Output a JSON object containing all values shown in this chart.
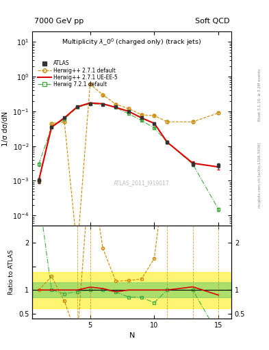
{
  "title_main": "Multiplicity $\\lambda\\_0^0$ (charged only) (track jets)",
  "top_left_label": "7000 GeV pp",
  "top_right_label": "Soft QCD",
  "right_label_top": "Rivet 3.1.10, ≥ 3.2M events",
  "right_label_bottom": "mcplots.cern.ch [arXiv:1306.3436]",
  "watermark": "ATLAS_2011_I919017",
  "ylabel_main": "1/σ dσ/dN",
  "ylabel_ratio": "Ratio to ATLAS",
  "xlabel": "N",
  "xlim": [
    0.5,
    16
  ],
  "ylim_main": [
    5e-05,
    20
  ],
  "ylim_ratio": [
    0.4,
    2.35
  ],
  "atlas_x": [
    1,
    2,
    3,
    4,
    5,
    6,
    7,
    8,
    9,
    10,
    11,
    13,
    15
  ],
  "atlas_y": [
    0.001,
    0.035,
    0.065,
    0.135,
    0.165,
    0.16,
    0.135,
    0.1,
    0.065,
    0.045,
    0.013,
    0.003,
    0.0028
  ],
  "atlas_yerr": [
    0.00015,
    0.002,
    0.003,
    0.006,
    0.007,
    0.007,
    0.006,
    0.005,
    0.003,
    0.0025,
    0.001,
    0.0004,
    0.0004
  ],
  "hw271_x": [
    1,
    2,
    3,
    4,
    5,
    6,
    7,
    8,
    9,
    10,
    11,
    13,
    15
  ],
  "hw271_y": [
    0.001,
    0.045,
    0.05,
    1e-05,
    0.6,
    0.3,
    0.16,
    0.12,
    0.08,
    0.075,
    0.05,
    0.05,
    0.09
  ],
  "hw271_yerr": [
    0.0001,
    0.003,
    0.003,
    2e-06,
    0.03,
    0.02,
    0.01,
    0.008,
    0.005,
    0.005,
    0.004,
    0.004,
    0.006
  ],
  "hw271ue_x": [
    1,
    2,
    3,
    4,
    5,
    6,
    7,
    8,
    9,
    10,
    11,
    13,
    15
  ],
  "hw271ue_y": [
    0.001,
    0.035,
    0.065,
    0.135,
    0.175,
    0.165,
    0.13,
    0.1,
    0.065,
    0.045,
    0.013,
    0.0032,
    0.0025
  ],
  "hw271ue_yerr": [
    0.00015,
    0.002,
    0.003,
    0.006,
    0.008,
    0.007,
    0.006,
    0.005,
    0.003,
    0.0025,
    0.001,
    0.0004,
    0.0004
  ],
  "hw721_x": [
    1,
    2,
    3,
    4,
    5,
    6,
    7,
    8,
    9,
    10,
    11,
    13,
    15
  ],
  "hw721_y": [
    0.003,
    0.035,
    0.06,
    0.13,
    0.165,
    0.16,
    0.13,
    0.085,
    0.055,
    0.033,
    0.013,
    0.003,
    0.00015
  ],
  "hw721_yerr": [
    0.0003,
    0.002,
    0.003,
    0.006,
    0.008,
    0.007,
    0.006,
    0.004,
    0.003,
    0.002,
    0.001,
    0.0004,
    2e-05
  ],
  "color_atlas": "#333333",
  "color_hw271": "#cc8800",
  "color_hw271ue": "#dd0000",
  "color_hw721": "#44aa44",
  "band_yellow": [
    0.62,
    1.38
  ],
  "band_green": [
    0.84,
    1.16
  ]
}
